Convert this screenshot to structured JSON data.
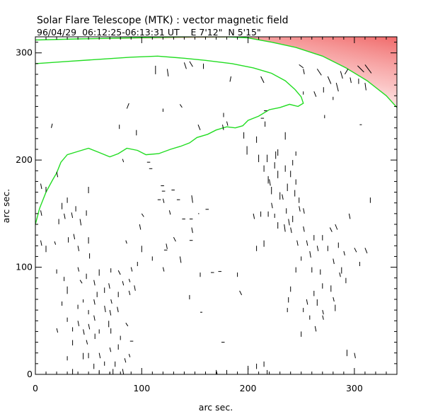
{
  "title": "Solar Flare Telescope (MTK) : vector magnetic field",
  "subtitle": "96/04/29  06:12:25-06:13:31 UT    E 7'12\"  N 5'15\"",
  "colors": {
    "contour": "#22dd22",
    "intensity_high": "#f07878",
    "vectors": "#000000"
  },
  "chart_data": {
    "type": "vector-field",
    "xlabel": "arc sec.",
    "ylabel": "arc sec.",
    "xlim": [
      0,
      340
    ],
    "ylim": [
      0,
      315
    ],
    "xticks": [
      0,
      100,
      200,
      300
    ],
    "yticks": [
      0,
      100,
      200,
      300
    ],
    "contours": [
      [
        [
          0,
          290
        ],
        [
          30,
          292
        ],
        [
          60,
          294
        ],
        [
          90,
          296
        ],
        [
          115,
          297
        ],
        [
          140,
          295
        ],
        [
          160,
          293
        ],
        [
          185,
          290
        ],
        [
          205,
          286
        ],
        [
          222,
          281
        ],
        [
          235,
          274
        ],
        [
          244,
          266
        ],
        [
          250,
          259
        ],
        [
          252,
          253
        ],
        [
          247,
          250
        ],
        [
          239,
          252
        ],
        [
          230,
          249
        ],
        [
          220,
          247
        ],
        [
          210,
          241
        ],
        [
          200,
          237
        ],
        [
          195,
          232
        ],
        [
          188,
          230
        ],
        [
          180,
          231
        ],
        [
          170,
          228
        ],
        [
          162,
          224
        ],
        [
          152,
          221
        ],
        [
          145,
          216
        ],
        [
          137,
          213
        ],
        [
          127,
          210
        ],
        [
          116,
          206
        ],
        [
          104,
          205
        ],
        [
          96,
          209
        ],
        [
          86,
          211
        ],
        [
          78,
          206
        ],
        [
          70,
          203
        ],
        [
          60,
          207
        ],
        [
          50,
          211
        ],
        [
          40,
          208
        ],
        [
          30,
          205
        ],
        [
          24,
          198
        ],
        [
          20,
          188
        ],
        [
          16,
          181
        ],
        [
          10,
          170
        ],
        [
          4,
          155
        ],
        [
          0,
          140
        ]
      ],
      [
        [
          0,
          312
        ],
        [
          40,
          313
        ],
        [
          90,
          314
        ],
        [
          150,
          315
        ],
        [
          180,
          315
        ],
        [
          200,
          314
        ],
        [
          222,
          310
        ],
        [
          245,
          305
        ],
        [
          270,
          297
        ],
        [
          292,
          286
        ],
        [
          312,
          274
        ],
        [
          330,
          260
        ],
        [
          340,
          249
        ]
      ]
    ],
    "vectors": [
      [
        113,
        288,
        0,
        -8
      ],
      [
        124,
        285,
        1,
        -7
      ],
      [
        140,
        291,
        2,
        -6
      ],
      [
        145,
        292,
        3,
        -5
      ],
      [
        158,
        290,
        0,
        -5
      ],
      [
        184,
        278,
        -1,
        -5
      ],
      [
        212,
        278,
        3,
        -6
      ],
      [
        248,
        289,
        4,
        -3
      ],
      [
        252,
        285,
        1,
        -5
      ],
      [
        265,
        285,
        4,
        -6
      ],
      [
        275,
        278,
        3,
        -7
      ],
      [
        287,
        283,
        2,
        -7
      ],
      [
        294,
        285,
        -3,
        -5
      ],
      [
        303,
        288,
        6,
        -6
      ],
      [
        310,
        289,
        6,
        -8
      ],
      [
        296,
        277,
        1,
        -5
      ],
      [
        304,
        276,
        0,
        -5
      ],
      [
        310,
        272,
        1,
        -7
      ],
      [
        252,
        264,
        0,
        -3
      ],
      [
        262,
        264,
        2,
        -5
      ],
      [
        271,
        268,
        0,
        -5
      ],
      [
        283,
        272,
        2,
        -8
      ],
      [
        280,
        259,
        0,
        -3
      ],
      [
        305,
        233,
        2,
        0
      ],
      [
        272,
        242,
        0,
        -3
      ],
      [
        86,
        248,
        2,
        5
      ],
      [
        120,
        248,
        0,
        -3
      ],
      [
        136,
        252,
        2,
        -3
      ],
      [
        153,
        233,
        2,
        -5
      ],
      [
        176,
        233,
        1,
        -5
      ],
      [
        177,
        244,
        0,
        -4
      ],
      [
        180,
        236,
        1,
        -4
      ],
      [
        215,
        246,
        3,
        0
      ],
      [
        212,
        239,
        3,
        0
      ],
      [
        216,
        236,
        0,
        -5
      ],
      [
        196,
        226,
        0,
        -6
      ],
      [
        199,
        213,
        0,
        -8
      ],
      [
        210,
        205,
        0,
        -7
      ],
      [
        218,
        205,
        0,
        -7
      ],
      [
        226,
        208,
        0,
        -7
      ],
      [
        208,
        222,
        0,
        -6
      ],
      [
        235,
        226,
        0,
        -7
      ],
      [
        79,
        233,
        0,
        -4
      ],
      [
        82,
        201,
        1,
        -3
      ],
      [
        95,
        228,
        0,
        -5
      ],
      [
        105,
        198,
        3,
        0
      ],
      [
        107,
        192,
        3,
        0
      ],
      [
        118,
        176,
        3,
        0
      ],
      [
        119,
        171,
        3,
        0
      ],
      [
        128,
        172,
        3,
        0
      ],
      [
        133,
        163,
        3,
        0
      ],
      [
        115,
        163,
        3,
        0
      ],
      [
        120,
        164,
        1,
        -4
      ],
      [
        138,
        145,
        3,
        0
      ],
      [
        145,
        145,
        3,
        0
      ],
      [
        126,
        153,
        1,
        -4
      ],
      [
        147,
        167,
        1,
        -7
      ],
      [
        147,
        137,
        1,
        -5
      ],
      [
        153,
        150,
        1,
        0
      ],
      [
        160,
        154,
        3,
        0
      ],
      [
        123,
        122,
        1,
        -5
      ],
      [
        121,
        116,
        3,
        0
      ],
      [
        130,
        128,
        2,
        -4
      ],
      [
        145,
        125,
        3,
        0
      ],
      [
        136,
        110,
        1,
        -6
      ],
      [
        5,
        178,
        1,
        -5
      ],
      [
        10,
        175,
        0,
        -5
      ],
      [
        20,
        189,
        1,
        -5
      ],
      [
        5,
        153,
        1,
        -5
      ],
      [
        5,
        125,
        1,
        -5
      ],
      [
        10,
        120,
        0,
        -6
      ],
      [
        18,
        124,
        1,
        -3
      ],
      [
        22,
        145,
        0,
        -5
      ],
      [
        25,
        160,
        0,
        -6
      ],
      [
        27,
        150,
        1,
        -5
      ],
      [
        30,
        165,
        0,
        -5
      ],
      [
        34,
        151,
        1,
        -5
      ],
      [
        38,
        157,
        0,
        -5
      ],
      [
        42,
        145,
        1,
        -6
      ],
      [
        48,
        153,
        0,
        -5
      ],
      [
        50,
        175,
        0,
        -6
      ],
      [
        31,
        128,
        0,
        -5
      ],
      [
        36,
        131,
        1,
        -5
      ],
      [
        40,
        120,
        1,
        -5
      ],
      [
        50,
        128,
        0,
        -6
      ],
      [
        51,
        113,
        0,
        -5
      ],
      [
        40,
        100,
        1,
        -4
      ],
      [
        20,
        98,
        0,
        -4
      ],
      [
        27,
        91,
        0,
        -4
      ],
      [
        30,
        82,
        0,
        -7
      ],
      [
        42,
        88,
        2,
        -3
      ],
      [
        48,
        94,
        0,
        -5
      ],
      [
        55,
        88,
        1,
        -5
      ],
      [
        60,
        98,
        0,
        -6
      ],
      [
        65,
        81,
        0,
        -5
      ],
      [
        69,
        85,
        1,
        -5
      ],
      [
        71,
        99,
        0,
        -4
      ],
      [
        78,
        97,
        2,
        -4
      ],
      [
        78,
        77,
        0,
        -5
      ],
      [
        88,
        89,
        1,
        -3
      ],
      [
        90,
        100,
        1,
        -4
      ],
      [
        93,
        83,
        1,
        -5
      ],
      [
        88,
        78,
        1,
        -4
      ],
      [
        71,
        70,
        1,
        -4
      ],
      [
        65,
        64,
        1,
        -6
      ],
      [
        70,
        60,
        1,
        -5
      ],
      [
        77,
        63,
        1,
        -5
      ],
      [
        69,
        50,
        0,
        -6
      ],
      [
        71,
        43,
        0,
        -5
      ],
      [
        60,
        42,
        0,
        -4
      ],
      [
        56,
        38,
        0,
        -5
      ],
      [
        48,
        32,
        1,
        -4
      ],
      [
        50,
        20,
        0,
        -5
      ],
      [
        60,
        20,
        1,
        -5
      ],
      [
        70,
        25,
        1,
        -4
      ],
      [
        65,
        12,
        0,
        -4
      ],
      [
        75,
        12,
        0,
        -5
      ],
      [
        73,
        5,
        0,
        -5
      ],
      [
        70,
        2,
        0,
        -5
      ],
      [
        82,
        5,
        1,
        -5
      ],
      [
        55,
        10,
        0,
        -5
      ],
      [
        45,
        20,
        0,
        -6
      ],
      [
        35,
        32,
        0,
        -5
      ],
      [
        45,
        42,
        1,
        -5
      ],
      [
        40,
        50,
        1,
        -5
      ],
      [
        50,
        47,
        1,
        -5
      ],
      [
        35,
        44,
        0,
        -4
      ],
      [
        20,
        43,
        1,
        -4
      ],
      [
        30,
        53,
        0,
        -4
      ],
      [
        25,
        68,
        0,
        -4
      ],
      [
        55,
        55,
        1,
        -5
      ],
      [
        55,
        70,
        1,
        -5
      ],
      [
        80,
        36,
        0,
        -4
      ],
      [
        85,
        48,
        2,
        -3
      ],
      [
        58,
        77,
        0,
        -5
      ],
      [
        82,
        87,
        1,
        -4
      ],
      [
        88,
        19,
        1,
        -3
      ],
      [
        89,
        31,
        3,
        0
      ],
      [
        78,
        28,
        0,
        -5
      ],
      [
        84,
        15,
        1,
        -4
      ],
      [
        35,
        5,
        0,
        -5
      ],
      [
        60,
        4,
        0,
        -3
      ],
      [
        30,
        17,
        0,
        -4
      ],
      [
        50,
        60,
        0,
        -4
      ],
      [
        45,
        70,
        0,
        -3
      ],
      [
        40,
        65,
        0,
        -4
      ],
      [
        155,
        95,
        0,
        -4
      ],
      [
        165,
        95,
        3,
        0
      ],
      [
        172,
        96,
        3,
        0
      ],
      [
        155,
        58,
        2,
        0
      ],
      [
        145,
        74,
        0,
        -4
      ],
      [
        175,
        30,
        3,
        0
      ],
      [
        170,
        4,
        1,
        -4
      ],
      [
        180,
        4,
        0,
        -6
      ],
      [
        190,
        95,
        0,
        -4
      ],
      [
        200,
        8,
        0,
        -4
      ],
      [
        208,
        10,
        0,
        -5
      ],
      [
        215,
        12,
        0,
        -5
      ],
      [
        218,
        4,
        0,
        -5
      ],
      [
        192,
        78,
        2,
        -4
      ],
      [
        205,
        150,
        1,
        -5
      ],
      [
        212,
        152,
        0,
        -5
      ],
      [
        219,
        152,
        0,
        -5
      ],
      [
        222,
        160,
        1,
        -5
      ],
      [
        225,
        150,
        0,
        -4
      ],
      [
        228,
        142,
        0,
        -6
      ],
      [
        234,
        140,
        1,
        -7
      ],
      [
        230,
        170,
        0,
        -7
      ],
      [
        237,
        178,
        0,
        -7
      ],
      [
        244,
        172,
        0,
        -6
      ],
      [
        220,
        182,
        1,
        -6
      ],
      [
        228,
        190,
        0,
        -7
      ],
      [
        235,
        195,
        0,
        -6
      ],
      [
        240,
        190,
        0,
        -6
      ],
      [
        245,
        182,
        0,
        -5
      ],
      [
        248,
        165,
        0,
        -5
      ],
      [
        252,
        155,
        1,
        -5
      ],
      [
        215,
        195,
        0,
        -6
      ],
      [
        219,
        185,
        0,
        -7
      ],
      [
        222,
        175,
        0,
        -7
      ],
      [
        225,
        198,
        0,
        -6
      ],
      [
        228,
        210,
        0,
        -6
      ],
      [
        242,
        200,
        0,
        -5
      ],
      [
        245,
        208,
        0,
        -4
      ],
      [
        232,
        168,
        1,
        -5
      ],
      [
        236,
        155,
        0,
        -5
      ],
      [
        238,
        145,
        1,
        -6
      ],
      [
        240,
        137,
        1,
        -5
      ],
      [
        246,
        125,
        1,
        -5
      ],
      [
        252,
        138,
        1,
        -5
      ],
      [
        255,
        125,
        1,
        -5
      ],
      [
        258,
        115,
        1,
        -6
      ],
      [
        262,
        130,
        0,
        -5
      ],
      [
        265,
        120,
        1,
        -5
      ],
      [
        270,
        130,
        0,
        -5
      ],
      [
        275,
        120,
        0,
        -5
      ],
      [
        280,
        108,
        1,
        -5
      ],
      [
        277,
        137,
        2,
        -4
      ],
      [
        282,
        140,
        2,
        -5
      ],
      [
        285,
        123,
        0,
        -5
      ],
      [
        290,
        115,
        1,
        -4
      ],
      [
        300,
        118,
        2,
        -4
      ],
      [
        305,
        105,
        0,
        -4
      ],
      [
        310,
        118,
        2,
        -5
      ],
      [
        288,
        100,
        0,
        -6
      ],
      [
        286,
        95,
        1,
        -4
      ],
      [
        292,
        90,
        0,
        -5
      ],
      [
        260,
        100,
        0,
        -5
      ],
      [
        268,
        98,
        0,
        -5
      ],
      [
        270,
        85,
        0,
        -5
      ],
      [
        278,
        83,
        0,
        -6
      ],
      [
        280,
        72,
        1,
        -4
      ],
      [
        282,
        65,
        0,
        -6
      ],
      [
        262,
        78,
        0,
        -5
      ],
      [
        265,
        70,
        0,
        -6
      ],
      [
        255,
        70,
        1,
        -5
      ],
      [
        252,
        62,
        0,
        -4
      ],
      [
        270,
        60,
        1,
        -4
      ],
      [
        258,
        55,
        0,
        -4
      ],
      [
        250,
        40,
        0,
        -5
      ],
      [
        240,
        82,
        0,
        -5
      ],
      [
        238,
        72,
        0,
        -5
      ],
      [
        237,
        62,
        0,
        -4
      ],
      [
        245,
        100,
        0,
        -5
      ],
      [
        250,
        110,
        0,
        -4
      ],
      [
        293,
        23,
        0,
        -6
      ],
      [
        300,
        20,
        1,
        -5
      ],
      [
        270,
        55,
        1,
        -4
      ],
      [
        263,
        45,
        1,
        -5
      ],
      [
        208,
        120,
        0,
        -5
      ],
      [
        215,
        125,
        0,
        -6
      ],
      [
        295,
        150,
        1,
        -5
      ],
      [
        315,
        165,
        0,
        -5
      ],
      [
        248,
        157,
        1,
        -5
      ],
      [
        242,
        148,
        0,
        -6
      ],
      [
        15,
        230,
        1,
        4
      ],
      [
        10,
        210,
        0,
        0
      ],
      [
        85,
        125,
        1,
        -3
      ],
      [
        100,
        150,
        2,
        -3
      ],
      [
        120,
        100,
        1,
        -4
      ],
      [
        110,
        110,
        0,
        -4
      ],
      [
        100,
        120,
        0,
        -6
      ],
      [
        98,
        140,
        1,
        -5
      ],
      [
        96,
        105,
        0,
        -4
      ]
    ]
  }
}
